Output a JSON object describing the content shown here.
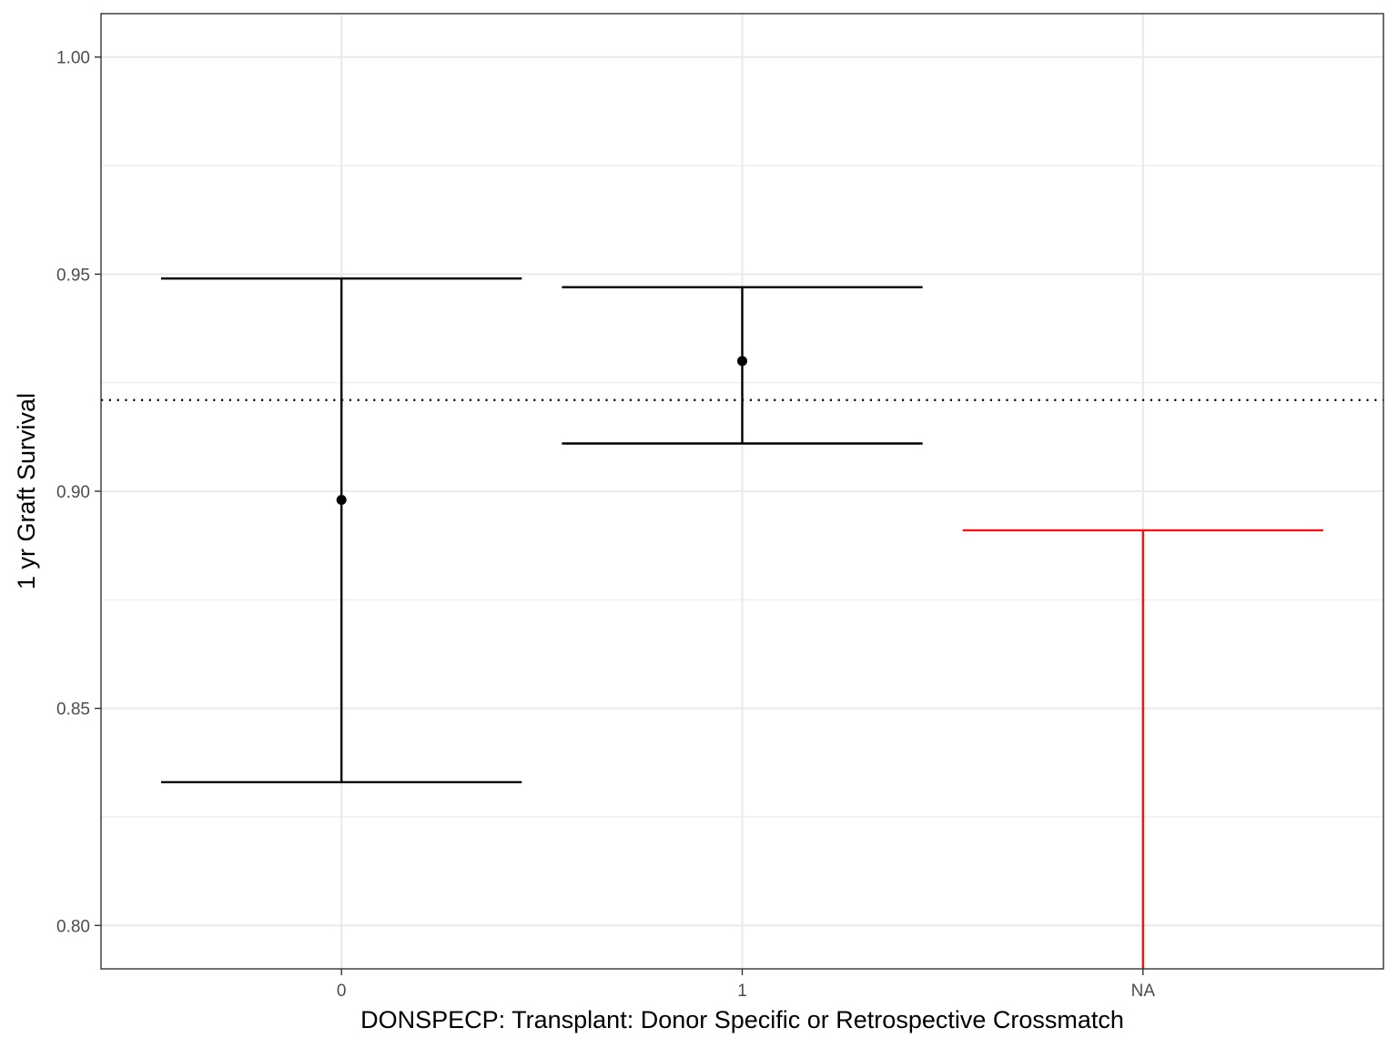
{
  "chart_data": {
    "type": "errorbar",
    "title": "",
    "xlabel": "DONSPECP: Transplant: Donor Specific or Retrospective Crossmatch",
    "ylabel": "1 yr Graft Survival",
    "categories": [
      "0",
      "1",
      "NA"
    ],
    "ylim": [
      0.79,
      1.01
    ],
    "yticks": [
      "0.80",
      "0.85",
      "0.90",
      "0.95",
      "1.00"
    ],
    "grid": true,
    "reference_line": {
      "y": 0.921,
      "style": "dotted",
      "color": "#000000"
    },
    "points": [
      {
        "category": "0",
        "estimate": 0.898,
        "lower": 0.833,
        "upper": 0.949,
        "color": "#000000"
      },
      {
        "category": "1",
        "estimate": 0.93,
        "lower": 0.911,
        "upper": 0.947,
        "color": "#000000"
      },
      {
        "category": "NA",
        "estimate": null,
        "lower": 0.79,
        "upper": 0.891,
        "color": "#e41a1c"
      }
    ]
  }
}
